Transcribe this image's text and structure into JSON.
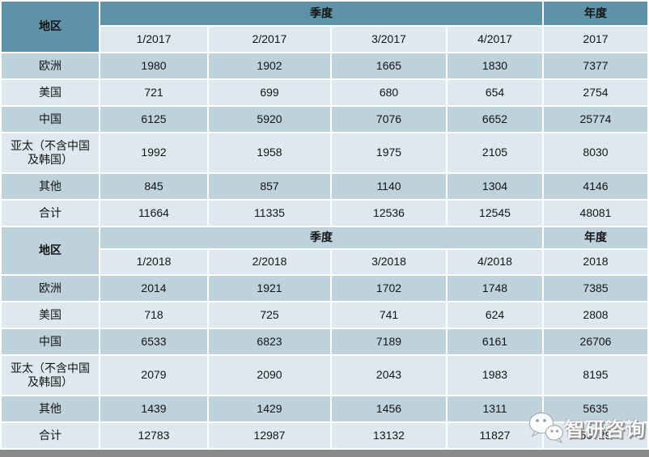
{
  "colors": {
    "header-teal": "#5e92a8",
    "row-dark": "#bed2db",
    "row-light": "#dde9ee",
    "bottom-bar": "#8a8a8a",
    "text": "#141414"
  },
  "watermark": {
    "text": "智研咨询",
    "icon": "wechat-icon"
  },
  "chart_data": [
    {
      "type": "table",
      "header": {
        "region": "地区",
        "quarter_group": "季度",
        "year_group": "年度"
      },
      "columns": [
        "1/2017",
        "2/2017",
        "3/2017",
        "4/2017",
        "2017"
      ],
      "rows": [
        {
          "region": "欧洲",
          "values": [
            1980,
            1902,
            1665,
            1830,
            7377
          ]
        },
        {
          "region": "美国",
          "values": [
            721,
            699,
            680,
            654,
            2754
          ]
        },
        {
          "region": "中国",
          "values": [
            6125,
            5920,
            7076,
            6652,
            25774
          ]
        },
        {
          "region": "亚太（不含中国及韩国）",
          "values": [
            1992,
            1958,
            1975,
            2105,
            8030
          ]
        },
        {
          "region": "其他",
          "values": [
            845,
            857,
            1140,
            1304,
            4146
          ]
        },
        {
          "region": "合计",
          "values": [
            11664,
            11335,
            12536,
            12545,
            48081
          ]
        }
      ]
    },
    {
      "type": "table",
      "header": {
        "region": "地区",
        "quarter_group": "季度",
        "year_group": "年度"
      },
      "columns": [
        "1/2018",
        "2/2018",
        "3/2018",
        "4/2018",
        "2018"
      ],
      "rows": [
        {
          "region": "欧洲",
          "values": [
            2014,
            1921,
            1702,
            1748,
            7385
          ]
        },
        {
          "region": "美国",
          "values": [
            718,
            725,
            741,
            624,
            2808
          ]
        },
        {
          "region": "中国",
          "values": [
            6533,
            6823,
            7189,
            6161,
            26706
          ]
        },
        {
          "region": "亚太（不含中国及韩国）",
          "values": [
            2079,
            2090,
            2043,
            1983,
            8195
          ]
        },
        {
          "region": "其他",
          "values": [
            1439,
            1429,
            1456,
            1311,
            5635
          ]
        },
        {
          "region": "合计",
          "values": [
            12783,
            12987,
            13132,
            11827,
            50729
          ]
        }
      ]
    }
  ]
}
